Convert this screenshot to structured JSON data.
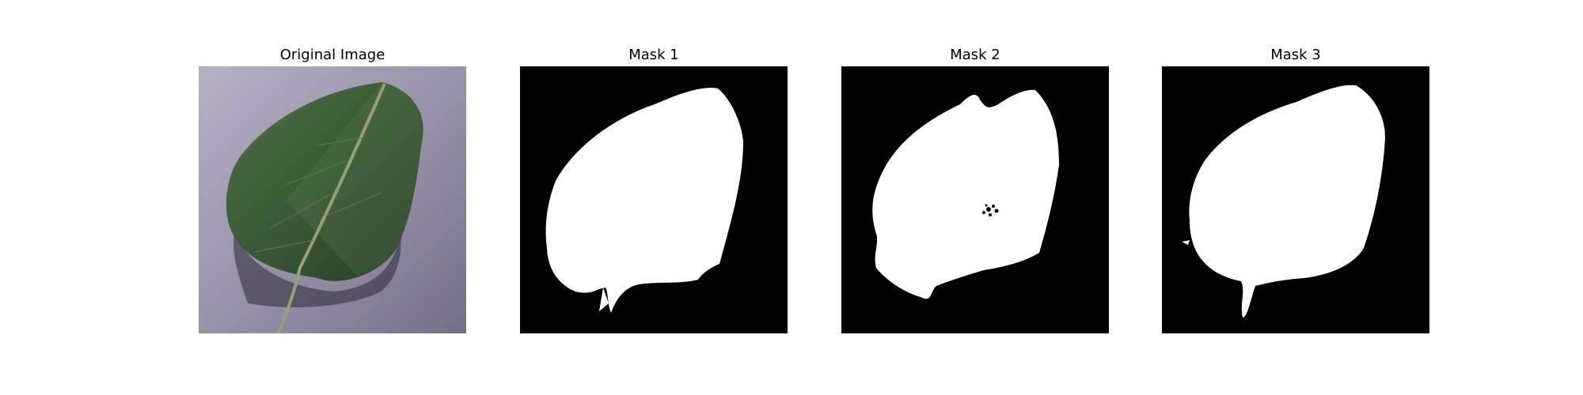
{
  "panels": [
    {
      "title": "Original Image",
      "kind": "photo",
      "icon": "leaf-photo"
    },
    {
      "title": "Mask 1",
      "kind": "mask",
      "icon": "leaf-mask"
    },
    {
      "title": "Mask 2",
      "kind": "mask",
      "icon": "leaf-mask"
    },
    {
      "title": "Mask 3",
      "kind": "mask",
      "icon": "leaf-mask"
    }
  ],
  "colors": {
    "mask_background": "#000000",
    "mask_foreground": "#ffffff",
    "photo_background": "#9a95ab",
    "leaf": "#3b5a37"
  }
}
